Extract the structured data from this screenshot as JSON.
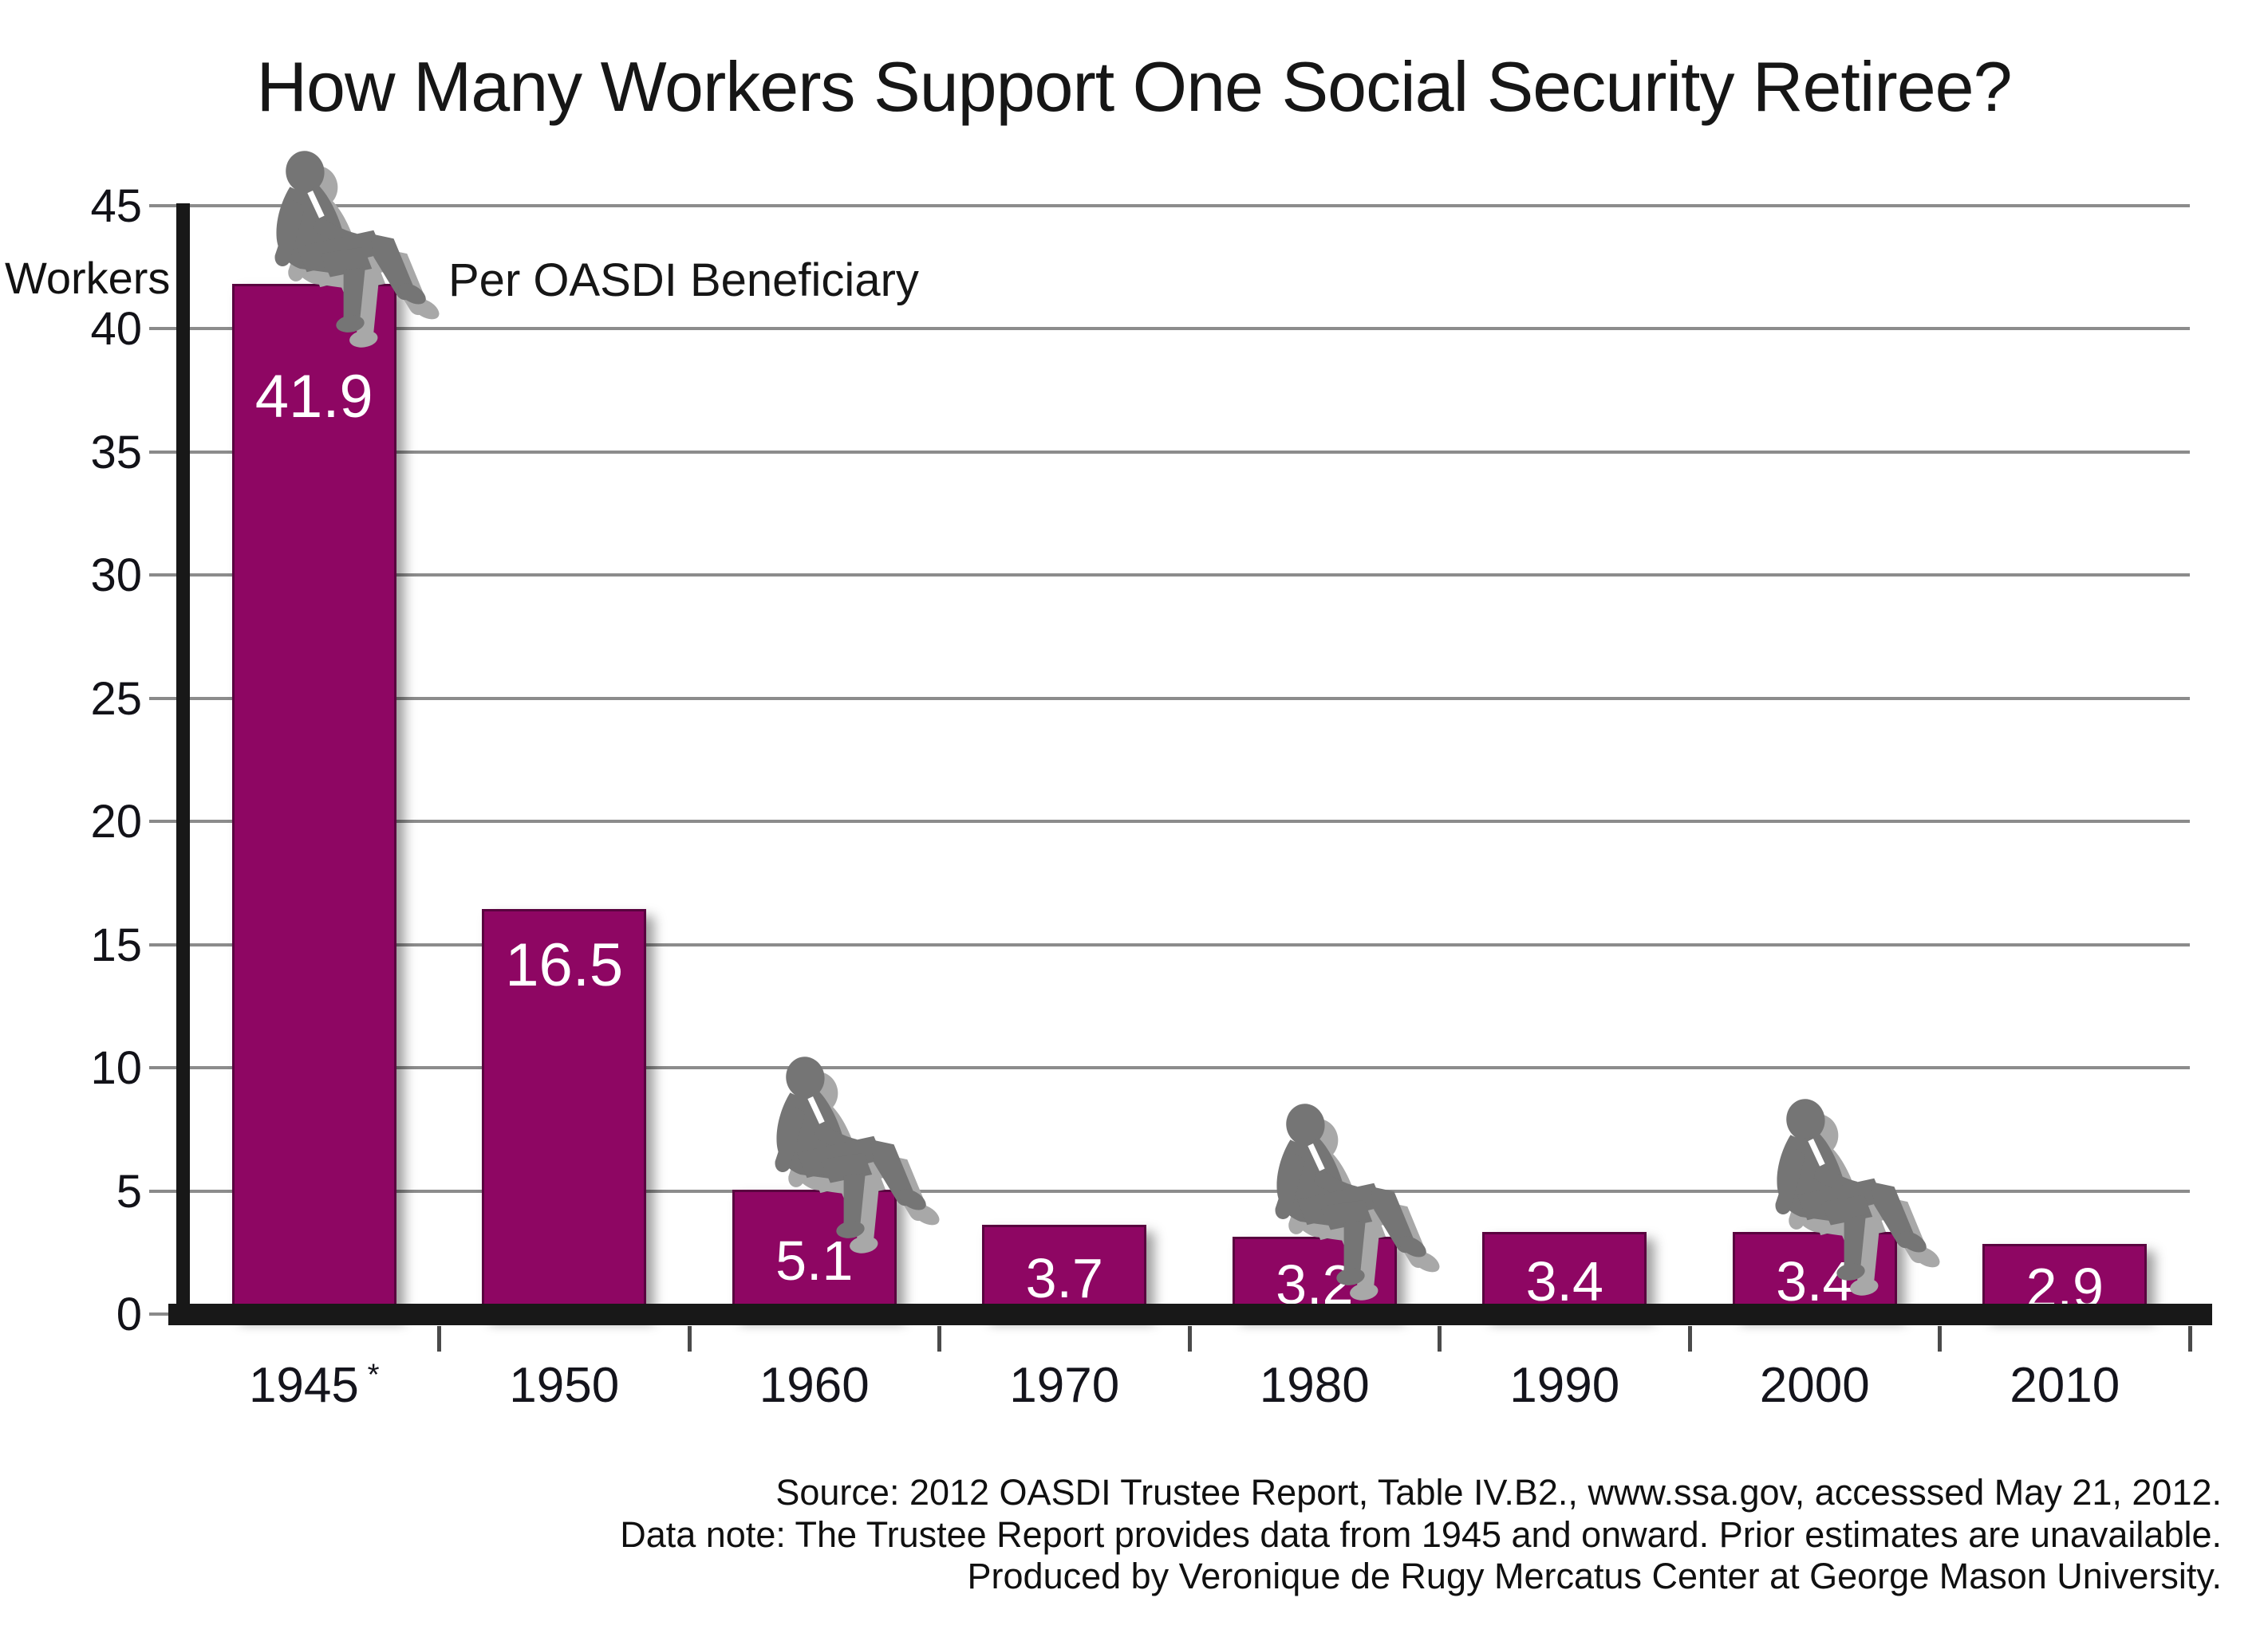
{
  "title": "How Many Workers Support One Social Security Retiree?",
  "y_axis_label": "Workers",
  "annotation": "Per OASDI Beneficiary",
  "chart_data": {
    "type": "bar",
    "title": "How Many Workers Support One Social Security Retiree?",
    "subtitle": "Per OASDI Beneficiary",
    "categories": [
      "1945*",
      "1950",
      "1960",
      "1970",
      "1980",
      "1990",
      "2000",
      "2010"
    ],
    "values": [
      41.9,
      16.5,
      5.1,
      3.7,
      3.2,
      3.4,
      3.4,
      2.9
    ],
    "bar_labels": [
      "41.9",
      "16.5",
      "5.1",
      "3.7",
      "3.2",
      "3.4",
      "3.4",
      "2.9"
    ],
    "xlabel": "",
    "ylabel": "Workers",
    "ylim": [
      0,
      45
    ],
    "yticks": [
      0,
      5,
      10,
      15,
      20,
      25,
      30,
      35,
      40,
      45
    ],
    "grid": "horizontal-gray-lines",
    "legend": "none",
    "bar_color": "#8E0663",
    "sitting_figure_on_bars": [
      "1945*",
      "1960",
      "1980",
      "2000"
    ]
  },
  "bars": [
    {
      "year": "1945",
      "year_suffix": "*",
      "label": "41.9",
      "value": 41.9,
      "figure": true
    },
    {
      "year": "1950",
      "year_suffix": "",
      "label": "16.5",
      "value": 16.5,
      "figure": false
    },
    {
      "year": "1960",
      "year_suffix": "",
      "label": "5.1",
      "value": 5.1,
      "figure": true
    },
    {
      "year": "1970",
      "year_suffix": "",
      "label": "3.7",
      "value": 3.7,
      "figure": false
    },
    {
      "year": "1980",
      "year_suffix": "",
      "label": "3.2",
      "value": 3.2,
      "figure": true
    },
    {
      "year": "1990",
      "year_suffix": "",
      "label": "3.4",
      "value": 3.4,
      "figure": false
    },
    {
      "year": "2000",
      "year_suffix": "",
      "label": "3.4",
      "value": 3.4,
      "figure": true
    },
    {
      "year": "2010",
      "year_suffix": "",
      "label": "2.9",
      "value": 2.9,
      "figure": false
    }
  ],
  "footer": {
    "lines": [
      "Source: 2012 OASDI Trustee Report, Table IV.B2., www.ssa.gov, accesssed May 21, 2012.",
      "Data note: The Trustee Report provides data from 1945 and onward. Prior estimates are unavailable.",
      "Produced by Veronique de Rugy Mercatus Center at George Mason University."
    ]
  },
  "colors": {
    "bar": "#8E0663",
    "bar_border": "#2D0223",
    "grid": "#8c8c8c",
    "axis": "#181818",
    "figure": "#757575",
    "figure_shadow": "#a8a8a8",
    "text": "#141414",
    "bar_label_text": "#ffffff"
  }
}
